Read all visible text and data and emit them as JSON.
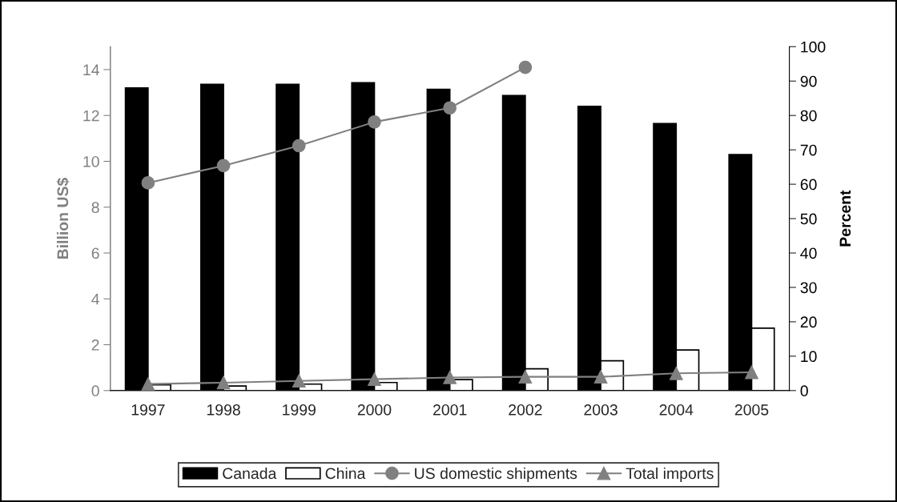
{
  "chart_data": {
    "type": "bar",
    "ylabel": "Billion US$",
    "y2label": "Percent",
    "categories": [
      "1997",
      "1998",
      "1999",
      "2000",
      "2001",
      "2002",
      "2003",
      "2004",
      "2005"
    ],
    "series": [
      {
        "name": "Canada",
        "color": "#000000",
        "values": [
          13.2,
          13.36,
          13.36,
          13.43,
          13.14,
          12.87,
          12.4,
          11.65,
          10.29
        ]
      },
      {
        "name": "China",
        "color": "#ffffff",
        "values": [
          0.25,
          0.2,
          0.28,
          0.35,
          0.48,
          0.95,
          1.3,
          1.77,
          2.72
        ]
      },
      {
        "name": "US domestic shipments",
        "type": "line",
        "axis": "y2",
        "marker": "circle",
        "color": "#808080",
        "values": [
          60.4,
          65.4,
          71.2,
          78.1,
          82.2,
          94.0,
          null,
          null,
          null
        ]
      },
      {
        "name": "Total imports",
        "type": "line",
        "axis": "y2",
        "marker": "triangle",
        "color": "#808080",
        "values": [
          1.9,
          2.3,
          2.8,
          3.3,
          3.8,
          4.0,
          4.0,
          5.0,
          5.3
        ]
      }
    ],
    "ylim": [
      0,
      15
    ],
    "yticks": [
      0,
      2,
      4,
      6,
      8,
      10,
      12,
      14
    ],
    "y2lim": [
      0,
      100
    ],
    "y2ticks": [
      0,
      10,
      20,
      30,
      40,
      50,
      60,
      70,
      80,
      90,
      100
    ],
    "grid": false,
    "legend": "bottom"
  }
}
